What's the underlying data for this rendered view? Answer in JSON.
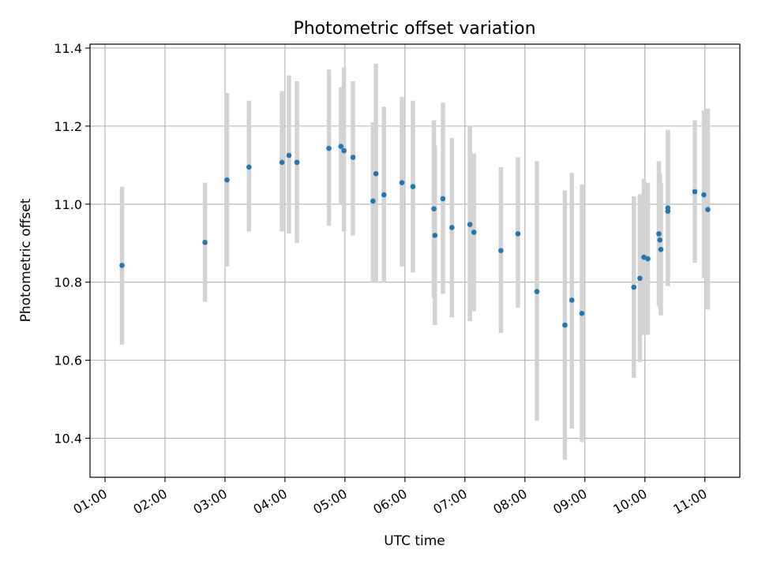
{
  "chart_data": {
    "type": "scatter",
    "title": "Photometric offset variation",
    "xlabel": "UTC time",
    "ylabel": "Photometric offset",
    "xlim": [
      "00:45",
      "11:35"
    ],
    "ylim": [
      10.3,
      11.41
    ],
    "grid": true,
    "x_ticks": [
      "01:00",
      "02:00",
      "03:00",
      "04:00",
      "05:00",
      "06:00",
      "07:00",
      "08:00",
      "09:00",
      "10:00",
      "11:00"
    ],
    "y_ticks": [
      10.4,
      10.6,
      10.8,
      11.0,
      11.2,
      11.4
    ],
    "colors": {
      "point": "#1f77b4",
      "errorbar": "#d3d3d3"
    },
    "series": [
      {
        "points": [
          {
            "x": "01:17",
            "y": 10.843,
            "lo": 10.64,
            "hi": 11.045
          },
          {
            "x": "02:40",
            "y": 10.902,
            "lo": 10.75,
            "hi": 11.055
          },
          {
            "x": "03:02",
            "y": 11.062,
            "lo": 10.84,
            "hi": 11.285
          },
          {
            "x": "03:24",
            "y": 11.095,
            "lo": 10.93,
            "hi": 11.265
          },
          {
            "x": "03:57",
            "y": 11.107,
            "lo": 10.93,
            "hi": 11.29
          },
          {
            "x": "04:04",
            "y": 11.125,
            "lo": 10.925,
            "hi": 11.33
          },
          {
            "x": "04:12",
            "y": 11.107,
            "lo": 10.9,
            "hi": 11.315
          },
          {
            "x": "04:44",
            "y": 11.143,
            "lo": 10.945,
            "hi": 11.345
          },
          {
            "x": "04:56",
            "y": 11.148,
            "lo": 11.0,
            "hi": 11.3
          },
          {
            "x": "04:59",
            "y": 11.137,
            "lo": 10.93,
            "hi": 11.35
          },
          {
            "x": "05:08",
            "y": 11.12,
            "lo": 10.92,
            "hi": 11.315
          },
          {
            "x": "05:28",
            "y": 11.008,
            "lo": 10.8,
            "hi": 11.21
          },
          {
            "x": "05:31",
            "y": 11.078,
            "lo": 10.8,
            "hi": 11.36
          },
          {
            "x": "05:39",
            "y": 11.024,
            "lo": 10.8,
            "hi": 11.25
          },
          {
            "x": "05:57",
            "y": 11.055,
            "lo": 10.84,
            "hi": 11.275
          },
          {
            "x": "06:08",
            "y": 11.045,
            "lo": 10.825,
            "hi": 11.265
          },
          {
            "x": "06:29",
            "y": 10.988,
            "lo": 10.76,
            "hi": 11.215
          },
          {
            "x": "06:30",
            "y": 10.92,
            "lo": 10.69,
            "hi": 11.15
          },
          {
            "x": "06:38",
            "y": 11.014,
            "lo": 10.77,
            "hi": 11.26
          },
          {
            "x": "06:47",
            "y": 10.94,
            "lo": 10.71,
            "hi": 11.17
          },
          {
            "x": "07:05",
            "y": 10.948,
            "lo": 10.7,
            "hi": 11.2
          },
          {
            "x": "07:09",
            "y": 10.928,
            "lo": 10.725,
            "hi": 11.13
          },
          {
            "x": "07:36",
            "y": 10.881,
            "lo": 10.67,
            "hi": 11.095
          },
          {
            "x": "07:53",
            "y": 10.924,
            "lo": 10.735,
            "hi": 11.12
          },
          {
            "x": "08:12",
            "y": 10.776,
            "lo": 10.445,
            "hi": 11.11
          },
          {
            "x": "08:40",
            "y": 10.69,
            "lo": 10.345,
            "hi": 11.035
          },
          {
            "x": "08:47",
            "y": 10.754,
            "lo": 10.425,
            "hi": 11.08
          },
          {
            "x": "08:57",
            "y": 10.72,
            "lo": 10.39,
            "hi": 11.05
          },
          {
            "x": "09:49",
            "y": 10.787,
            "lo": 10.555,
            "hi": 11.02
          },
          {
            "x": "09:55",
            "y": 10.81,
            "lo": 10.595,
            "hi": 11.025
          },
          {
            "x": "09:59",
            "y": 10.864,
            "lo": 10.665,
            "hi": 11.065
          },
          {
            "x": "10:03",
            "y": 10.86,
            "lo": 10.665,
            "hi": 11.055
          },
          {
            "x": "10:14",
            "y": 10.924,
            "lo": 10.74,
            "hi": 11.11
          },
          {
            "x": "10:15",
            "y": 10.908,
            "lo": 10.735,
            "hi": 11.08
          },
          {
            "x": "10:16",
            "y": 10.884,
            "lo": 10.715,
            "hi": 11.055
          },
          {
            "x": "10:23",
            "y": 10.982,
            "lo": 10.79,
            "hi": 11.19
          },
          {
            "x": "10:23",
            "y": 10.99,
            "lo": 10.79,
            "hi": 11.19
          },
          {
            "x": "10:50",
            "y": 11.032,
            "lo": 10.85,
            "hi": 11.215
          },
          {
            "x": "10:59",
            "y": 11.024,
            "lo": 10.81,
            "hi": 11.24
          },
          {
            "x": "11:03",
            "y": 10.986,
            "lo": 10.73,
            "hi": 11.245
          }
        ]
      }
    ]
  }
}
